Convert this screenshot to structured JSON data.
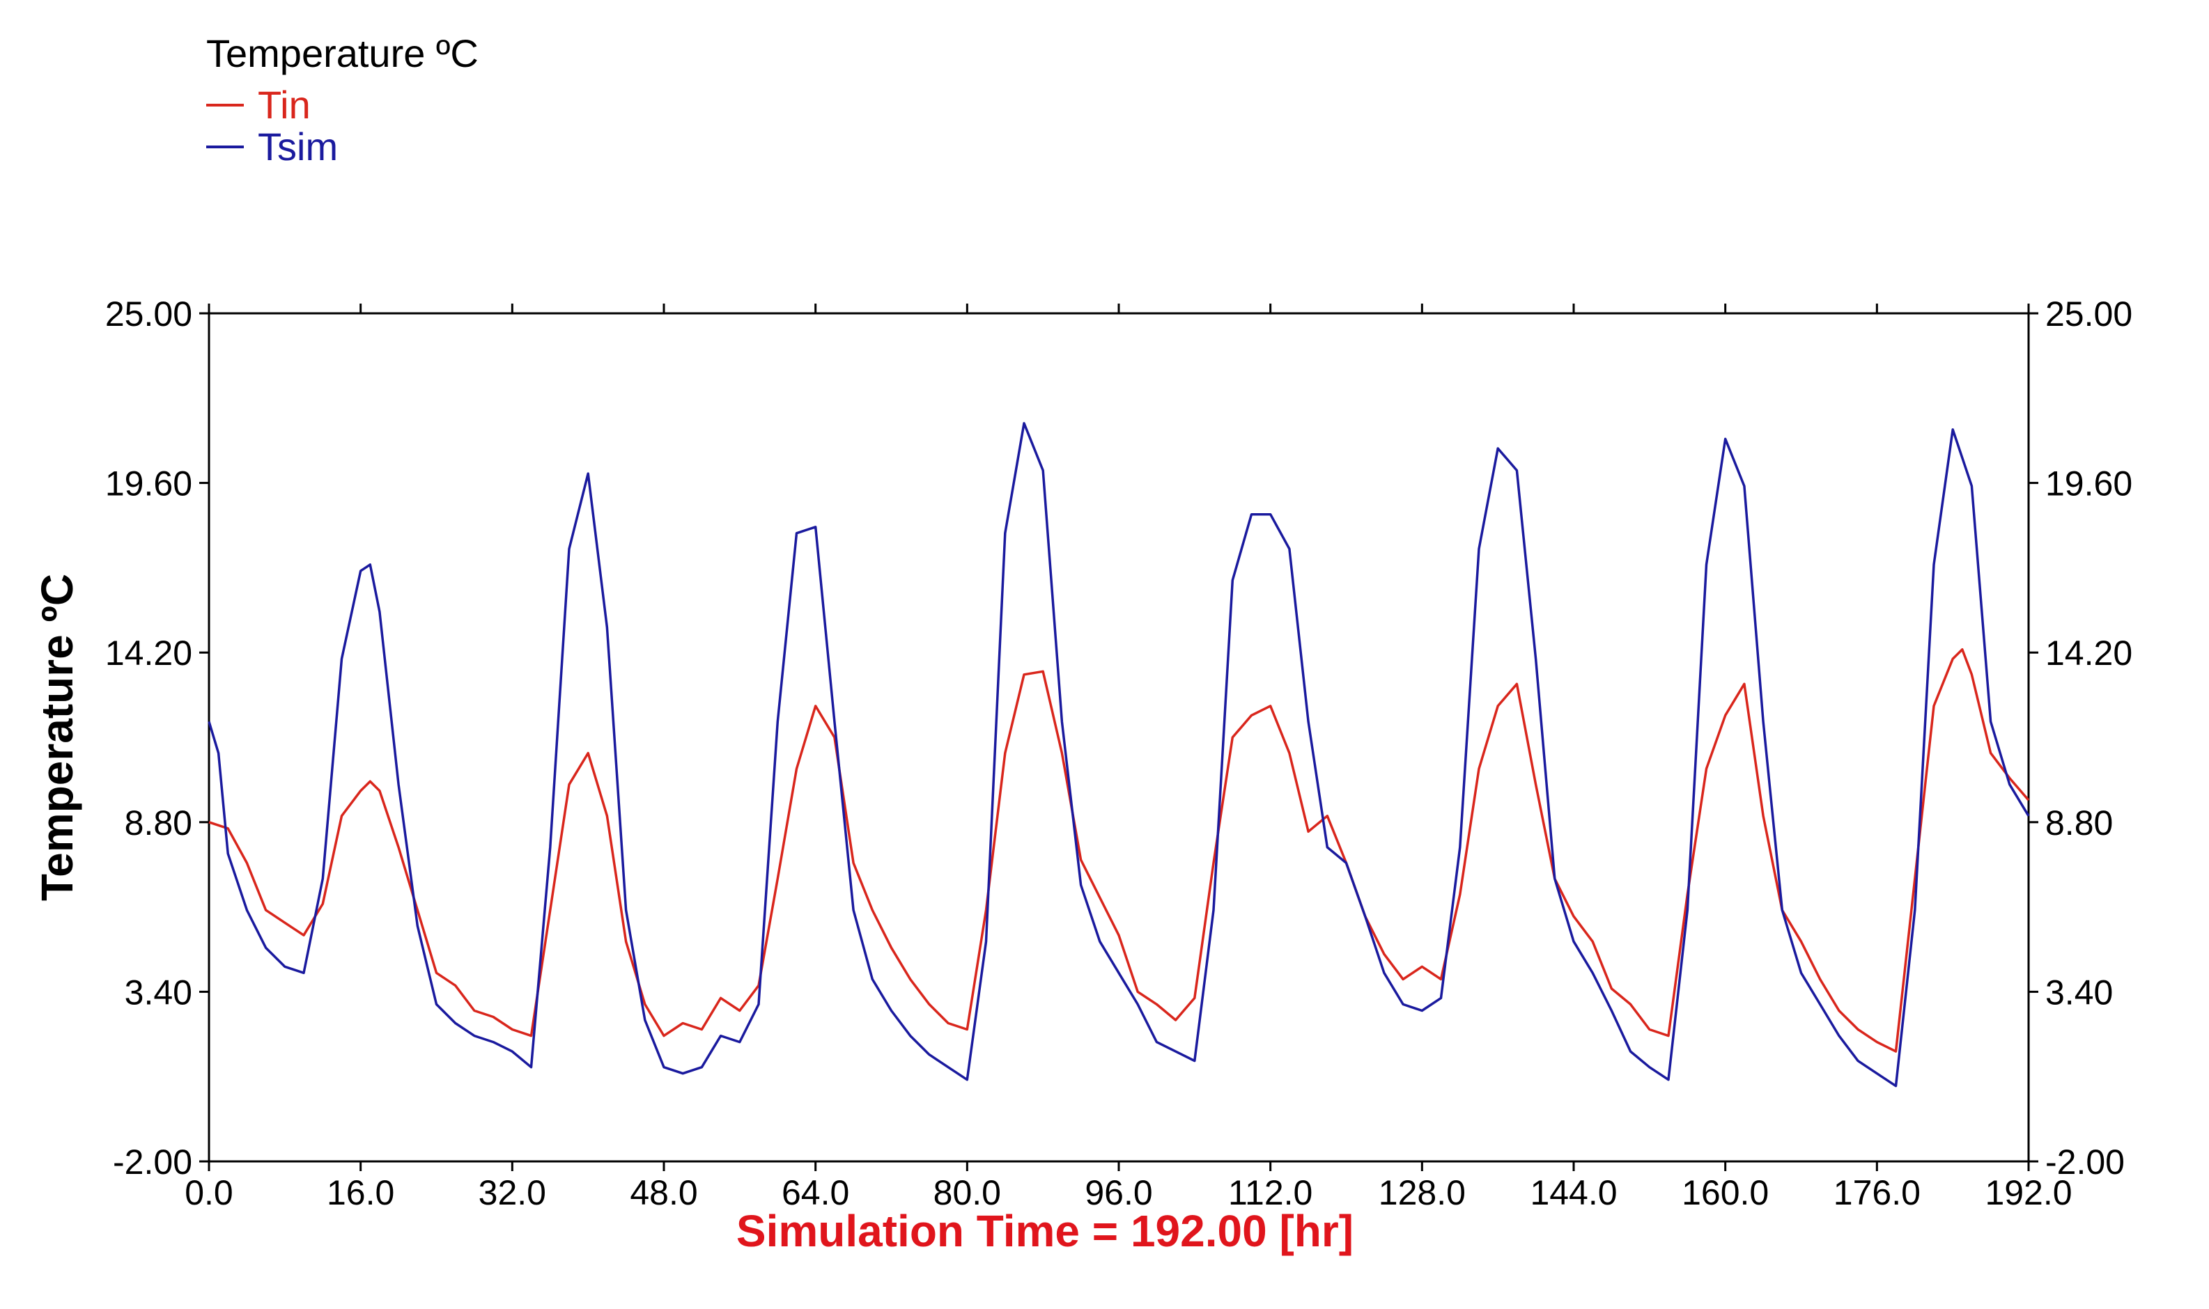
{
  "chart_data": {
    "type": "line",
    "legend_title": "Temperature ºC",
    "legend_position": "top-left",
    "xlabel": "Simulation Time = 192.00 [hr]",
    "ylabel": "Temperature ºC",
    "xlim": [
      0,
      192
    ],
    "ylim": [
      -2,
      25
    ],
    "x_ticks": [
      "0.0",
      "16.0",
      "32.0",
      "48.0",
      "64.0",
      "80.0",
      "96.0",
      "112.0",
      "128.0",
      "144.0",
      "160.0",
      "176.0",
      "192.0"
    ],
    "y_ticks": [
      "-2.00",
      "3.40",
      "8.80",
      "14.20",
      "19.60",
      "25.00"
    ],
    "y_ticks_right": [
      "-2.00",
      "3.40",
      "8.80",
      "14.20",
      "19.60",
      "25.00"
    ],
    "grid": false,
    "series": [
      {
        "name": "Tin",
        "color": "#d9261c",
        "points": [
          [
            0,
            8.8
          ],
          [
            2,
            8.6
          ],
          [
            4,
            7.5
          ],
          [
            6,
            6.0
          ],
          [
            8,
            5.6
          ],
          [
            10,
            5.2
          ],
          [
            12,
            6.2
          ],
          [
            14,
            9.0
          ],
          [
            16,
            9.8
          ],
          [
            17,
            10.1
          ],
          [
            18,
            9.8
          ],
          [
            20,
            8.0
          ],
          [
            22,
            6.0
          ],
          [
            24,
            4.0
          ],
          [
            26,
            3.6
          ],
          [
            28,
            2.8
          ],
          [
            30,
            2.6
          ],
          [
            32,
            2.2
          ],
          [
            34,
            2.0
          ],
          [
            36,
            6.0
          ],
          [
            38,
            10.0
          ],
          [
            40,
            11.0
          ],
          [
            42,
            9.0
          ],
          [
            44,
            5.0
          ],
          [
            46,
            3.0
          ],
          [
            48,
            2.0
          ],
          [
            50,
            2.4
          ],
          [
            52,
            2.2
          ],
          [
            54,
            3.2
          ],
          [
            56,
            2.8
          ],
          [
            58,
            3.6
          ],
          [
            60,
            7.0
          ],
          [
            62,
            10.5
          ],
          [
            64,
            12.5
          ],
          [
            66,
            11.5
          ],
          [
            68,
            7.5
          ],
          [
            70,
            6.0
          ],
          [
            72,
            4.8
          ],
          [
            74,
            3.8
          ],
          [
            76,
            3.0
          ],
          [
            78,
            2.4
          ],
          [
            80,
            2.2
          ],
          [
            82,
            6.0
          ],
          [
            84,
            11.0
          ],
          [
            86,
            13.5
          ],
          [
            88,
            13.6
          ],
          [
            90,
            11.0
          ],
          [
            92,
            7.6
          ],
          [
            94,
            6.4
          ],
          [
            96,
            5.2
          ],
          [
            98,
            3.4
          ],
          [
            100,
            3.0
          ],
          [
            102,
            2.5
          ],
          [
            104,
            3.2
          ],
          [
            106,
            7.5
          ],
          [
            108,
            11.5
          ],
          [
            110,
            12.2
          ],
          [
            112,
            12.5
          ],
          [
            114,
            11.0
          ],
          [
            116,
            8.5
          ],
          [
            118,
            9.0
          ],
          [
            120,
            7.5
          ],
          [
            122,
            5.8
          ],
          [
            124,
            4.6
          ],
          [
            126,
            3.8
          ],
          [
            128,
            4.2
          ],
          [
            130,
            3.8
          ],
          [
            132,
            6.5
          ],
          [
            134,
            10.5
          ],
          [
            136,
            12.5
          ],
          [
            138,
            13.2
          ],
          [
            140,
            10.0
          ],
          [
            142,
            7.0
          ],
          [
            144,
            5.8
          ],
          [
            146,
            5.0
          ],
          [
            148,
            3.5
          ],
          [
            150,
            3.0
          ],
          [
            152,
            2.2
          ],
          [
            154,
            2.0
          ],
          [
            156,
            6.5
          ],
          [
            158,
            10.5
          ],
          [
            160,
            12.2
          ],
          [
            162,
            13.2
          ],
          [
            164,
            9.0
          ],
          [
            166,
            6.0
          ],
          [
            168,
            5.0
          ],
          [
            170,
            3.8
          ],
          [
            172,
            2.8
          ],
          [
            174,
            2.2
          ],
          [
            176,
            1.8
          ],
          [
            178,
            1.5
          ],
          [
            180,
            7.0
          ],
          [
            182,
            12.5
          ],
          [
            184,
            14.0
          ],
          [
            185,
            14.3
          ],
          [
            186,
            13.5
          ],
          [
            188,
            11.0
          ],
          [
            190,
            10.2
          ],
          [
            192,
            9.5
          ]
        ]
      },
      {
        "name": "Tsim",
        "color": "#1a1a9e",
        "points": [
          [
            0,
            12.0
          ],
          [
            1,
            11.0
          ],
          [
            2,
            7.8
          ],
          [
            4,
            6.0
          ],
          [
            6,
            4.8
          ],
          [
            8,
            4.2
          ],
          [
            10,
            4.0
          ],
          [
            12,
            7.0
          ],
          [
            14,
            14.0
          ],
          [
            16,
            16.8
          ],
          [
            17,
            17.0
          ],
          [
            18,
            15.5
          ],
          [
            20,
            10.0
          ],
          [
            22,
            5.5
          ],
          [
            24,
            3.0
          ],
          [
            26,
            2.4
          ],
          [
            28,
            2.0
          ],
          [
            30,
            1.8
          ],
          [
            32,
            1.5
          ],
          [
            34,
            1.0
          ],
          [
            36,
            8.0
          ],
          [
            38,
            17.5
          ],
          [
            40,
            19.9
          ],
          [
            42,
            15.0
          ],
          [
            44,
            6.0
          ],
          [
            46,
            2.5
          ],
          [
            48,
            1.0
          ],
          [
            50,
            0.8
          ],
          [
            52,
            1.0
          ],
          [
            54,
            2.0
          ],
          [
            56,
            1.8
          ],
          [
            58,
            3.0
          ],
          [
            60,
            12.0
          ],
          [
            62,
            18.0
          ],
          [
            64,
            18.2
          ],
          [
            66,
            12.0
          ],
          [
            68,
            6.0
          ],
          [
            70,
            3.8
          ],
          [
            72,
            2.8
          ],
          [
            74,
            2.0
          ],
          [
            76,
            1.4
          ],
          [
            78,
            1.0
          ],
          [
            80,
            0.6
          ],
          [
            82,
            5.0
          ],
          [
            84,
            18.0
          ],
          [
            86,
            21.5
          ],
          [
            88,
            20.0
          ],
          [
            90,
            12.0
          ],
          [
            92,
            6.8
          ],
          [
            94,
            5.0
          ],
          [
            96,
            4.0
          ],
          [
            98,
            3.0
          ],
          [
            100,
            1.8
          ],
          [
            102,
            1.5
          ],
          [
            104,
            1.2
          ],
          [
            106,
            6.0
          ],
          [
            108,
            16.5
          ],
          [
            110,
            18.6
          ],
          [
            112,
            18.6
          ],
          [
            114,
            17.5
          ],
          [
            116,
            12.0
          ],
          [
            118,
            8.0
          ],
          [
            120,
            7.5
          ],
          [
            122,
            5.8
          ],
          [
            124,
            4.0
          ],
          [
            126,
            3.0
          ],
          [
            128,
            2.8
          ],
          [
            130,
            3.2
          ],
          [
            132,
            8.0
          ],
          [
            134,
            17.5
          ],
          [
            136,
            20.7
          ],
          [
            138,
            20.0
          ],
          [
            140,
            14.0
          ],
          [
            142,
            7.0
          ],
          [
            144,
            5.0
          ],
          [
            146,
            4.0
          ],
          [
            148,
            2.8
          ],
          [
            150,
            1.5
          ],
          [
            152,
            1.0
          ],
          [
            154,
            0.6
          ],
          [
            156,
            6.0
          ],
          [
            158,
            17.0
          ],
          [
            160,
            21.0
          ],
          [
            162,
            19.5
          ],
          [
            164,
            12.0
          ],
          [
            166,
            6.0
          ],
          [
            168,
            4.0
          ],
          [
            170,
            3.0
          ],
          [
            172,
            2.0
          ],
          [
            174,
            1.2
          ],
          [
            176,
            0.8
          ],
          [
            178,
            0.4
          ],
          [
            180,
            6.0
          ],
          [
            182,
            17.0
          ],
          [
            184,
            21.3
          ],
          [
            186,
            19.5
          ],
          [
            188,
            12.0
          ],
          [
            190,
            10.0
          ],
          [
            192,
            9.0
          ]
        ]
      }
    ]
  }
}
